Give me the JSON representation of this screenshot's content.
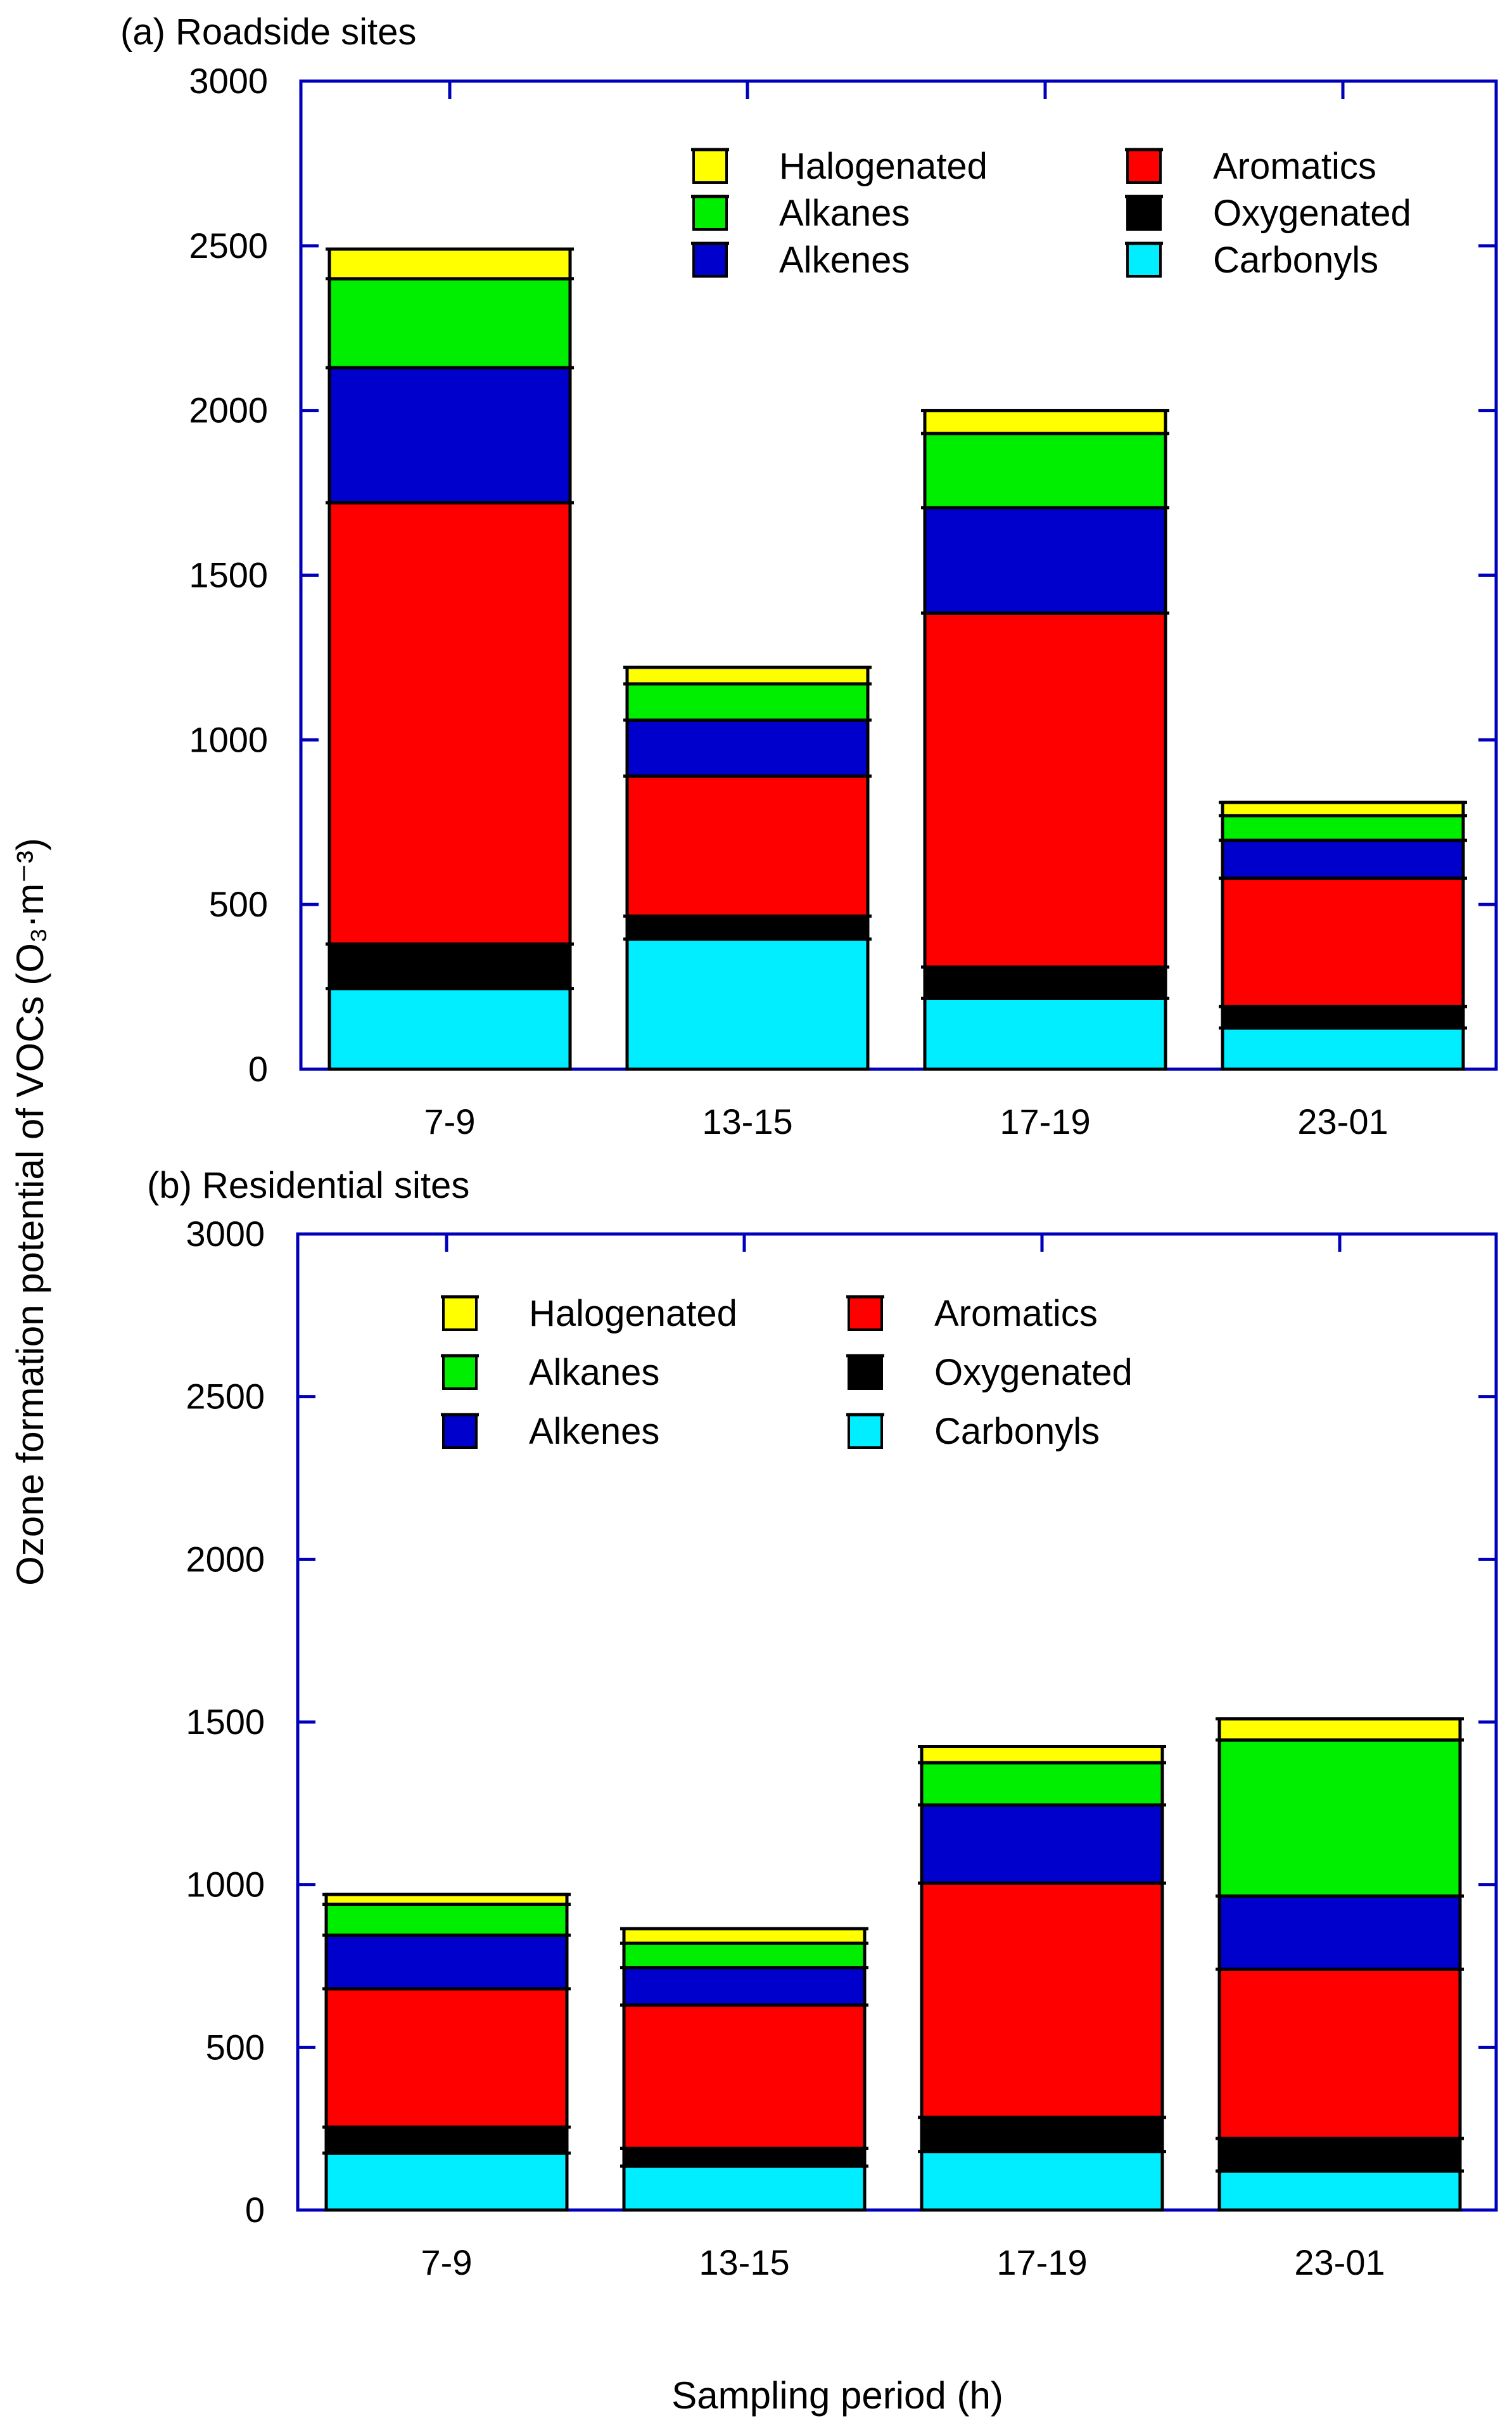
{
  "figure": {
    "ylabel": "Ozone formation potential of VOCs (O₃·m⁻³)",
    "xlabel": "Sampling period (h)"
  },
  "series_colors": {
    "Carbonyls": "#00eeff",
    "Oxygenated": "#000000",
    "Aromatics": "#ff0000",
    "Alkenes": "#0000cc",
    "Alkanes": "#00ee00",
    "Halogenated": "#ffff00"
  },
  "axis_color": "#0000bb",
  "legend_order": [
    "Halogenated",
    "Alkanes",
    "Alkenes",
    "Aromatics",
    "Oxygenated",
    "Carbonyls"
  ],
  "chart_data": [
    {
      "type": "bar",
      "stacked": true,
      "title": "(a) Roadside sites",
      "xlabel": "Sampling period (h)",
      "ylabel": "Ozone formation potential of VOCs (O₃·m⁻³)",
      "categories": [
        "7-9",
        "13-15",
        "17-19",
        "23-01"
      ],
      "ylim": [
        0,
        3000
      ],
      "yticks": [
        0,
        500,
        1000,
        1500,
        2000,
        2500,
        3000
      ],
      "legend_position": "top-right",
      "series": [
        {
          "name": "Carbonyls",
          "values": [
            245,
            395,
            215,
            125
          ]
        },
        {
          "name": "Oxygenated",
          "values": [
            135,
            70,
            95,
            65
          ]
        },
        {
          "name": "Aromatics",
          "values": [
            1340,
            425,
            1075,
            390
          ]
        },
        {
          "name": "Alkenes",
          "values": [
            410,
            170,
            320,
            115
          ]
        },
        {
          "name": "Alkanes",
          "values": [
            270,
            110,
            225,
            75
          ]
        },
        {
          "name": "Halogenated",
          "values": [
            90,
            50,
            70,
            40
          ]
        }
      ]
    },
    {
      "type": "bar",
      "stacked": true,
      "title": "(b) Residential sites",
      "xlabel": "Sampling period (h)",
      "ylabel": "Ozone formation potential of VOCs (O₃·m⁻³)",
      "categories": [
        "7-9",
        "13-15",
        "17-19",
        "23-01"
      ],
      "ylim": [
        0,
        3000
      ],
      "yticks": [
        0,
        500,
        1000,
        1500,
        2000,
        2500,
        3000
      ],
      "legend_position": "top-left",
      "series": [
        {
          "name": "Carbonyls",
          "values": [
            175,
            135,
            180,
            120
          ]
        },
        {
          "name": "Oxygenated",
          "values": [
            80,
            55,
            105,
            100
          ]
        },
        {
          "name": "Aromatics",
          "values": [
            425,
            440,
            720,
            520
          ]
        },
        {
          "name": "Alkenes",
          "values": [
            165,
            115,
            240,
            225
          ]
        },
        {
          "name": "Alkanes",
          "values": [
            95,
            75,
            130,
            480
          ]
        },
        {
          "name": "Halogenated",
          "values": [
            30,
            45,
            50,
            65
          ]
        }
      ]
    }
  ]
}
